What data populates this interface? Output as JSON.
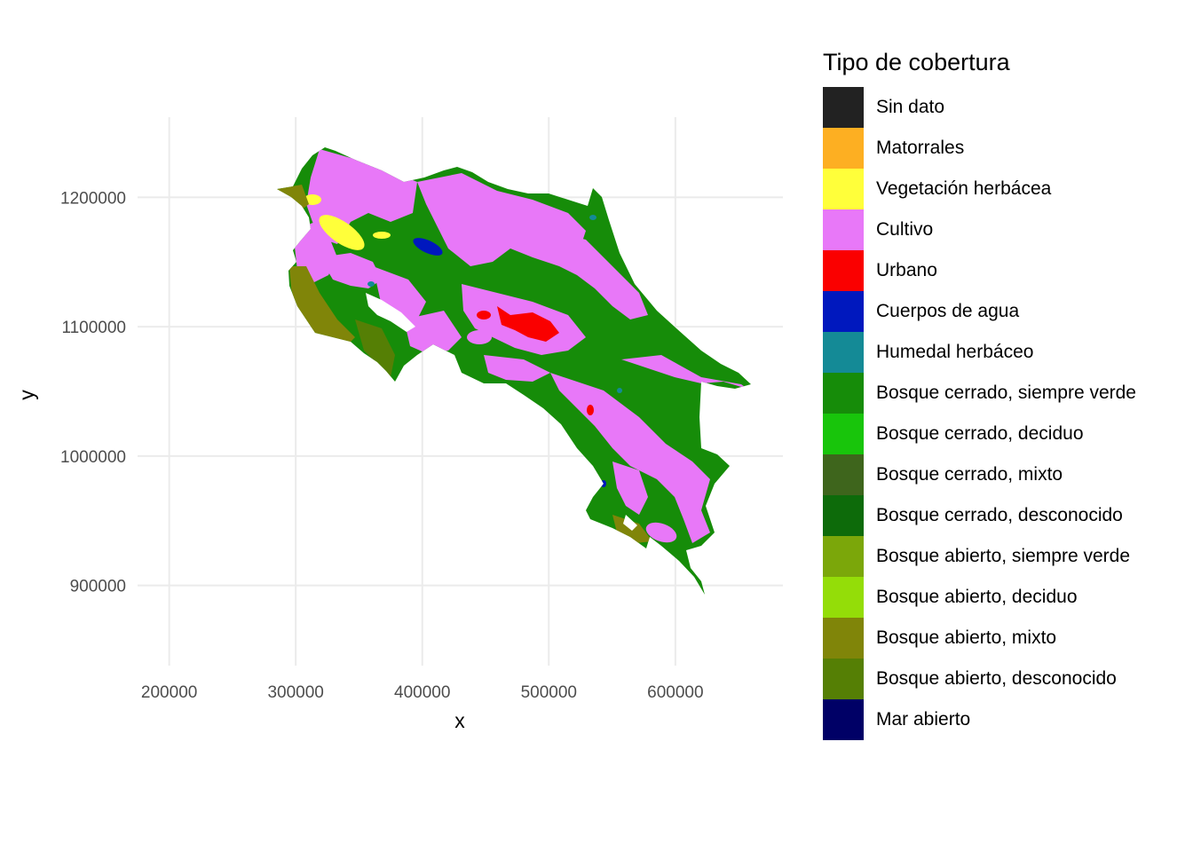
{
  "chart_data": {
    "type": "raster-map",
    "xlabel": "x",
    "ylabel": "y",
    "xlim": [
      175000,
      685000
    ],
    "ylim": [
      838000,
      1262000
    ],
    "x_ticks": [
      200000,
      300000,
      400000,
      500000,
      600000
    ],
    "y_ticks": [
      900000,
      1000000,
      1100000,
      1200000
    ],
    "x_tick_labels": [
      "200000",
      "300000",
      "400000",
      "500000",
      "600000"
    ],
    "y_tick_labels": [
      "900000",
      "1000000",
      "1100000",
      "1200000"
    ],
    "grid": true,
    "legend_placement": "right",
    "legend": {
      "title": "Tipo de cobertura",
      "items": [
        {
          "label": "Sin dato",
          "color": "#222222"
        },
        {
          "label": "Matorrales",
          "color": "#FDAF22"
        },
        {
          "label": "Vegetación herbácea",
          "color": "#FFFF3A"
        },
        {
          "label": "Cultivo",
          "color": "#E878F8"
        },
        {
          "label": "Urbano",
          "color": "#FA0000"
        },
        {
          "label": "Cuerpos de agua",
          "color": "#0018BE"
        },
        {
          "label": "Humedal herbáceo",
          "color": "#148A96"
        },
        {
          "label": "Bosque cerrado, siempre verde",
          "color": "#168C09"
        },
        {
          "label": "Bosque cerrado, deciduo",
          "color": "#18C50B"
        },
        {
          "label": "Bosque cerrado, mixto",
          "color": "#3E651C"
        },
        {
          "label": "Bosque cerrado, desconocido",
          "color": "#0D6B0A"
        },
        {
          "label": "Bosque abierto, siempre verde",
          "color": "#7BA70A"
        },
        {
          "label": "Bosque abierto, deciduo",
          "color": "#94DD08"
        },
        {
          "label": "Bosque abierto, mixto",
          "color": "#808509"
        },
        {
          "label": "Bosque abierto, desconocido",
          "color": "#557F05"
        },
        {
          "label": "Mar abierto",
          "color": "#000066"
        }
      ]
    }
  }
}
